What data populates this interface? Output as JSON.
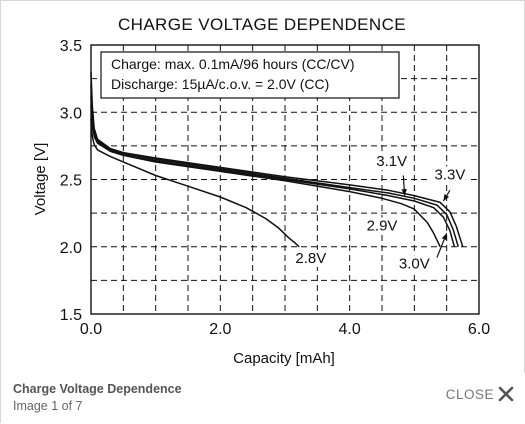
{
  "lightbox": {
    "caption_title": "Charge Voltage Dependence",
    "image_counter": "Image 1 of 7",
    "close_label": "CLOSE",
    "close_icon": "close-x-icon"
  },
  "chart_data": {
    "type": "line",
    "title": "CHARGE VOLTAGE DEPENDENCE",
    "xlabel": "Capacity [mAh]",
    "ylabel": "Voltage [V]",
    "xlim": [
      0,
      6
    ],
    "ylim": [
      1.5,
      3.5
    ],
    "xticks": [
      0,
      2,
      4,
      6
    ],
    "xtick_labels": [
      "0.0",
      "2.0",
      "4.0",
      "6.0"
    ],
    "yticks": [
      1.5,
      2.0,
      2.5,
      3.0,
      3.5
    ],
    "ytick_labels": [
      "1.5",
      "2.0",
      "2.5",
      "3.0",
      "3.5"
    ],
    "grid": true,
    "grid_style": "dashed",
    "annotation_box": {
      "lines": [
        "Charge: max. 0.1mA/96 hours (CC/CV)",
        "Discharge: 15µA/c.o.v. = 2.0V (CC)"
      ]
    },
    "series": [
      {
        "name": "2.8V",
        "x": [
          0.0,
          0.02,
          0.05,
          0.1,
          0.3,
          0.6,
          1.0,
          1.5,
          2.0,
          2.4,
          2.7,
          2.9,
          3.05,
          3.15,
          3.22
        ],
        "y": [
          2.95,
          2.82,
          2.76,
          2.72,
          2.67,
          2.61,
          2.53,
          2.45,
          2.37,
          2.29,
          2.21,
          2.14,
          2.07,
          2.03,
          2.0
        ]
      },
      {
        "name": "2.9V",
        "x": [
          0.0,
          0.02,
          0.05,
          0.1,
          0.3,
          0.5,
          1.0,
          2.0,
          3.0,
          4.0,
          4.5,
          4.8,
          5.0,
          5.2,
          5.3,
          5.4
        ],
        "y": [
          3.05,
          2.92,
          2.82,
          2.77,
          2.71,
          2.68,
          2.63,
          2.56,
          2.49,
          2.41,
          2.36,
          2.32,
          2.28,
          2.18,
          2.1,
          2.0
        ]
      },
      {
        "name": "3.0V",
        "x": [
          0.0,
          0.02,
          0.05,
          0.1,
          0.3,
          0.5,
          1.0,
          2.0,
          3.0,
          4.0,
          4.6,
          5.0,
          5.3,
          5.45,
          5.55,
          5.62
        ],
        "y": [
          3.12,
          2.96,
          2.84,
          2.78,
          2.71,
          2.68,
          2.64,
          2.57,
          2.5,
          2.43,
          2.38,
          2.34,
          2.29,
          2.22,
          2.12,
          2.0
        ]
      },
      {
        "name": "3.1V",
        "x": [
          0.0,
          0.02,
          0.05,
          0.1,
          0.3,
          0.5,
          1.0,
          2.0,
          3.0,
          4.0,
          4.6,
          5.0,
          5.35,
          5.5,
          5.6,
          5.68
        ],
        "y": [
          3.2,
          3.0,
          2.86,
          2.79,
          2.72,
          2.69,
          2.65,
          2.58,
          2.51,
          2.44,
          2.4,
          2.36,
          2.31,
          2.24,
          2.13,
          2.0
        ]
      },
      {
        "name": "3.3V",
        "x": [
          0.0,
          0.02,
          0.05,
          0.1,
          0.3,
          0.5,
          1.0,
          2.0,
          3.0,
          4.0,
          4.6,
          5.0,
          5.4,
          5.55,
          5.65,
          5.75
        ],
        "y": [
          3.3,
          3.05,
          2.88,
          2.8,
          2.73,
          2.7,
          2.66,
          2.59,
          2.52,
          2.46,
          2.42,
          2.38,
          2.33,
          2.26,
          2.15,
          2.0
        ]
      }
    ],
    "curve_labels": [
      {
        "text": "2.8V",
        "x": 3.4,
        "y": 1.88
      },
      {
        "text": "2.9V",
        "x": 4.5,
        "y": 2.12
      },
      {
        "text": "3.0V",
        "x": 5.0,
        "y": 1.84
      },
      {
        "text": "3.1V",
        "x": 4.65,
        "y": 2.6
      },
      {
        "text": "3.3V",
        "x": 5.55,
        "y": 2.5
      }
    ]
  }
}
